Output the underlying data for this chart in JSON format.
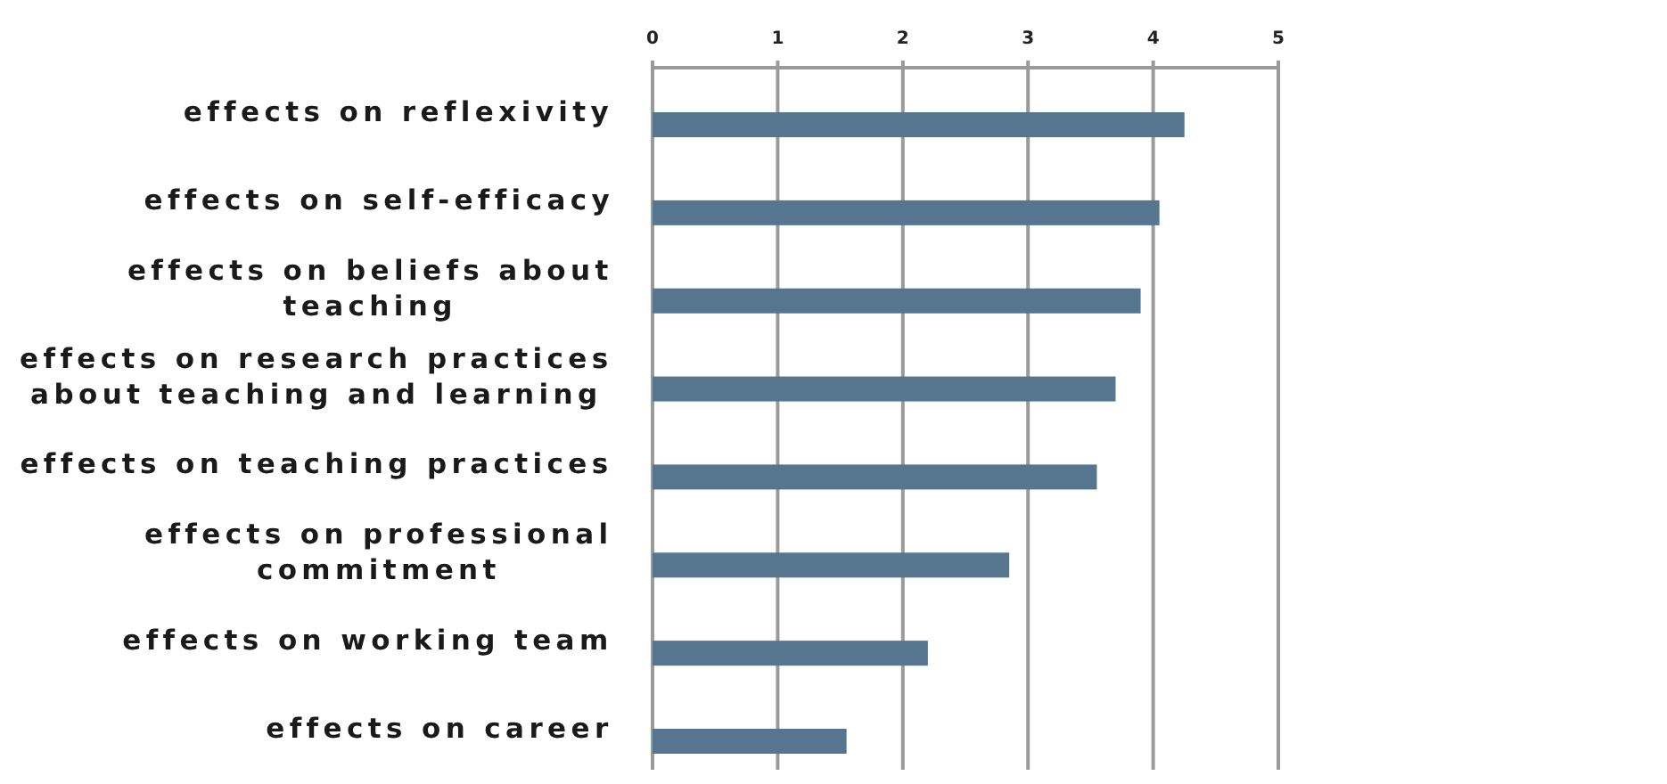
{
  "chart_data": {
    "type": "bar",
    "orientation": "horizontal",
    "categories": [
      "effects on reflexivity",
      "effects on self-efficacy",
      "effects on beliefs about teaching",
      "effects on research practices about teaching and learning",
      "effects on teaching practices",
      "effects on professional commitment",
      "effects on working team",
      "effects on career"
    ],
    "values": [
      4.25,
      4.05,
      3.9,
      3.7,
      3.55,
      2.85,
      2.2,
      1.55
    ],
    "color": "#56768f",
    "xlim": [
      0,
      5
    ],
    "xticks": [
      0,
      1,
      2,
      3,
      4,
      5
    ],
    "grid": "x"
  }
}
